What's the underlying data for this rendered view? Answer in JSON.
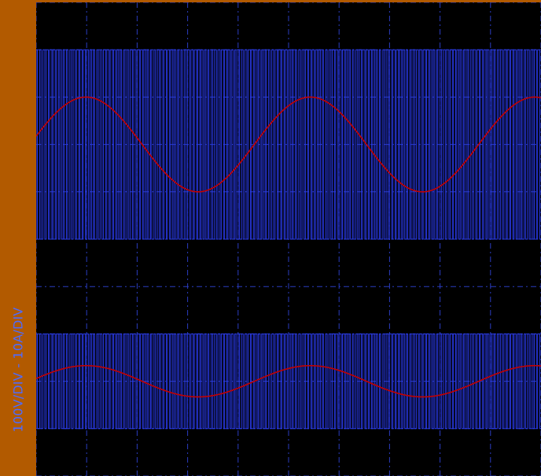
{
  "colors": {
    "background": "#000000",
    "strip": "#b25a00",
    "grid": "#2a3cc0",
    "pwm": "#2b3cf0",
    "sine": "#c40000",
    "label": "#4d6bff"
  },
  "scale_label": "100V/DIV - 10A/DIV",
  "chart_data": {
    "type": "line",
    "title": "",
    "ylabel": "100V/DIV - 10A/DIV",
    "grid": true,
    "x_divisions": 10,
    "y_divisions": 10,
    "xlim": [
      0,
      10
    ],
    "ylim": [
      0,
      10
    ],
    "series": [
      {
        "kind": "pwm",
        "low_div": 5.0,
        "high_div": 9.0,
        "pulses": 150
      },
      {
        "kind": "sine",
        "center_div": 7.0,
        "amplitude_div": 1.0,
        "cycles": 2.25,
        "phase_deg": 10
      },
      {
        "kind": "pwm",
        "low_div": 1.0,
        "high_div": 3.0,
        "pulses": 150
      },
      {
        "kind": "sine",
        "center_div": 2.0,
        "amplitude_div": 0.33,
        "cycles": 2.25,
        "phase_deg": 10
      }
    ]
  }
}
